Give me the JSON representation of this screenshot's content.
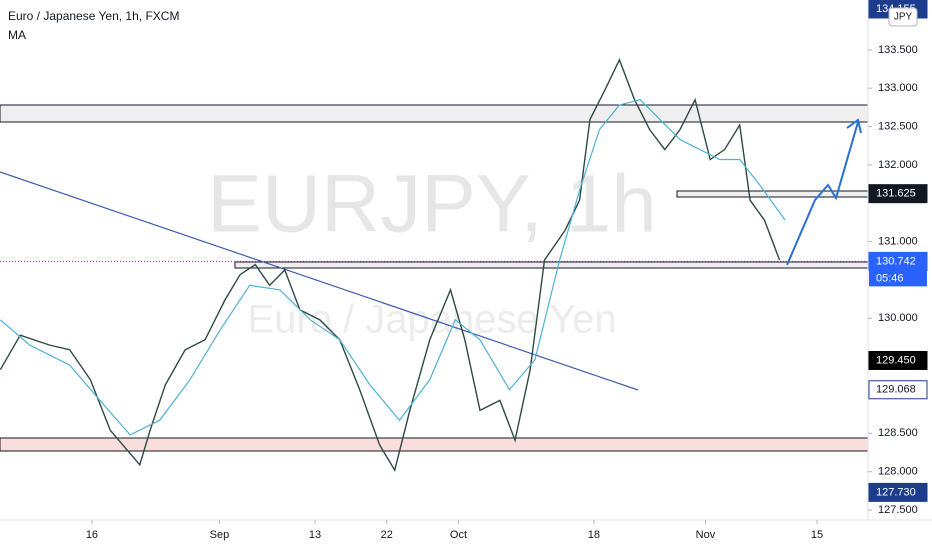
{
  "chart_data": {
    "type": "line",
    "title": "Euro / Japanese Yen, 1h, FXCM",
    "indicator": "MA",
    "watermark": "EURJPY, 1h",
    "watermark_subtitle": "Euro / Japanese Yen",
    "currency": "JPY",
    "countdown": "05:46",
    "series": [
      {
        "color": "#2e4a42",
        "x": [
          4.5,
          7.0,
          10.7,
          13.2,
          15.8,
          18.3,
          22.0,
          23.3,
          25.2,
          27.7,
          30.2,
          32.7,
          34.6,
          36.5,
          38.3,
          40.2,
          42.1,
          44.6,
          47.1,
          49.6,
          52.1,
          54.0,
          55.9,
          58.4,
          61.0,
          62.8,
          64.7,
          67.2,
          69.1,
          71.0,
          72.8,
          75.4,
          77.2,
          78.5,
          80.4,
          82.2,
          84.1,
          86.0,
          87.9,
          89.8,
          91.7,
          93.6,
          95.4,
          97.3,
          98.6,
          100.4,
          102.3
        ],
        "values": [
          129.33,
          129.78,
          129.65,
          129.59,
          129.2,
          128.54,
          128.09,
          128.54,
          129.13,
          129.59,
          129.72,
          130.24,
          130.57,
          130.7,
          130.43,
          130.63,
          130.11,
          129.98,
          129.72,
          129.07,
          128.35,
          128.02,
          128.8,
          129.72,
          130.37,
          129.72,
          128.8,
          128.93,
          128.41,
          129.33,
          130.76,
          131.15,
          131.54,
          132.59,
          132.98,
          133.37,
          132.85,
          132.46,
          132.2,
          132.46,
          132.85,
          132.07,
          132.2,
          132.52,
          131.54,
          131.28,
          130.76
        ]
      },
      {
        "name": "MA",
        "color": "#4fb0d8",
        "x": [
          4.5,
          8.2,
          13.2,
          17.0,
          20.8,
          24.5,
          28.3,
          32.1,
          35.8,
          39.6,
          43.4,
          47.1,
          50.9,
          54.6,
          58.4,
          61.6,
          64.7,
          68.4,
          71.6,
          74.7,
          77.2,
          79.7,
          82.2,
          84.8,
          87.3,
          89.8,
          92.3,
          94.8,
          97.3,
          99.8,
          103.0
        ],
        "values": [
          129.98,
          129.65,
          129.39,
          128.93,
          128.48,
          128.67,
          129.2,
          129.85,
          130.43,
          130.37,
          129.98,
          129.72,
          129.13,
          128.67,
          129.2,
          129.98,
          129.72,
          129.07,
          129.46,
          130.76,
          131.67,
          132.46,
          132.78,
          132.85,
          132.59,
          132.33,
          132.2,
          132.07,
          132.07,
          131.74,
          131.28
        ]
      }
    ],
    "xlim": [
      4.46,
      113.4
    ],
    "xticks": [
      {
        "value": 16,
        "label": "16"
      },
      {
        "value": 32,
        "label": "Sep"
      },
      {
        "value": 44,
        "label": "13"
      },
      {
        "value": 53,
        "label": "22"
      },
      {
        "value": 62,
        "label": "Oct"
      },
      {
        "value": 79,
        "label": "18"
      },
      {
        "value": 93,
        "label": "Nov"
      },
      {
        "value": 107,
        "label": "15"
      }
    ],
    "ylim": [
      127.37,
      134.15
    ],
    "yticks": [
      {
        "value": 127.5,
        "label": "127.500"
      },
      {
        "value": 128,
        "label": "128.000"
      },
      {
        "value": 128.5,
        "label": "128.500"
      },
      {
        "value": 130,
        "label": "130.000"
      },
      {
        "value": 131,
        "label": "131.000"
      },
      {
        "value": 132,
        "label": "132.000"
      },
      {
        "value": 132.5,
        "label": "132.500"
      },
      {
        "value": 133,
        "label": "133.000"
      },
      {
        "value": 133.5,
        "label": "133.500"
      }
    ],
    "price_tags": [
      {
        "value": 134.155,
        "label": "134.155",
        "color": "#1e3c8c"
      },
      {
        "value": 131.625,
        "label": "131.625",
        "color": "#131722"
      },
      {
        "value": 130.742,
        "label": "130.742",
        "color": "#2962ff"
      },
      {
        "value": 129.45,
        "label": "129.450",
        "color": "#000000"
      },
      {
        "value": 129.068,
        "label": "129.068",
        "color": "#ffffff"
      },
      {
        "value": 127.73,
        "label": "127.730",
        "color": "#1e3c8c"
      }
    ]
  }
}
